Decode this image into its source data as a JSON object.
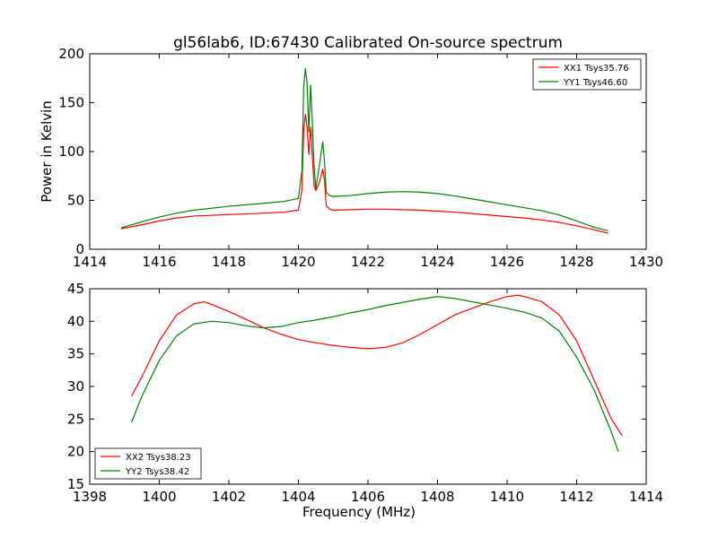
{
  "figure": {
    "title": "gl56lab6, ID:67430 Calibrated On-source spectrum"
  },
  "chart_data": [
    {
      "type": "line",
      "title": "gl56lab6, ID:67430 Calibrated On-source spectrum",
      "xlabel": "",
      "ylabel": "Power in Kelvin",
      "xlim": [
        1414,
        1430
      ],
      "ylim": [
        0,
        200
      ],
      "xticks": [
        1414,
        1416,
        1418,
        1420,
        1422,
        1424,
        1426,
        1428,
        1430
      ],
      "yticks": [
        0,
        50,
        100,
        150,
        200
      ],
      "grid": false,
      "legend": "top-right",
      "series": [
        {
          "name": "XX1 Tsys35.76",
          "color": "#ff0000",
          "x": [
            1414.9,
            1415.5,
            1416.0,
            1416.5,
            1417.0,
            1418.0,
            1419.0,
            1419.6,
            1420.0,
            1420.1,
            1420.15,
            1420.2,
            1420.25,
            1420.3,
            1420.35,
            1420.4,
            1420.45,
            1420.5,
            1420.6,
            1420.7,
            1420.75,
            1420.8,
            1420.9,
            1421.0,
            1421.5,
            1422.0,
            1422.5,
            1423.0,
            1423.5,
            1424.0,
            1424.5,
            1425.0,
            1425.5,
            1426.0,
            1426.5,
            1427.0,
            1427.5,
            1428.0,
            1428.5,
            1428.9
          ],
          "y": [
            21,
            25,
            29,
            32,
            34,
            35.5,
            37,
            38,
            40,
            60,
            120,
            138,
            125,
            97,
            125,
            95,
            65,
            60,
            68,
            82,
            70,
            45,
            41,
            40,
            40.5,
            41,
            41,
            40.5,
            40,
            39,
            38,
            36.5,
            35,
            33.5,
            32,
            30,
            27.5,
            24,
            20,
            16.5
          ]
        },
        {
          "name": "YY1 Tsys46.60",
          "color": "#008000",
          "x": [
            1414.9,
            1415.5,
            1416.0,
            1416.5,
            1417.0,
            1418.0,
            1419.0,
            1419.6,
            1420.0,
            1420.1,
            1420.15,
            1420.2,
            1420.25,
            1420.3,
            1420.35,
            1420.4,
            1420.45,
            1420.5,
            1420.6,
            1420.7,
            1420.75,
            1420.8,
            1420.9,
            1421.0,
            1421.5,
            1422.0,
            1422.5,
            1423.0,
            1423.5,
            1424.0,
            1424.5,
            1425.0,
            1425.5,
            1426.0,
            1426.5,
            1427.0,
            1427.5,
            1428.0,
            1428.5,
            1428.9
          ],
          "y": [
            22,
            28,
            33,
            37,
            40,
            44,
            47,
            49,
            52,
            80,
            165,
            185,
            170,
            120,
            168,
            130,
            85,
            62,
            85,
            110,
            90,
            58,
            55,
            54,
            55,
            57,
            58.5,
            59,
            58.5,
            57,
            54.5,
            51.5,
            48.5,
            45.5,
            42.5,
            39.5,
            35,
            29,
            22.5,
            19
          ]
        }
      ]
    },
    {
      "type": "line",
      "title": "",
      "xlabel": "Frequency (MHz)",
      "ylabel": "",
      "xlim": [
        1398,
        1414
      ],
      "ylim": [
        15,
        45
      ],
      "xticks": [
        1398,
        1400,
        1402,
        1404,
        1406,
        1408,
        1410,
        1412,
        1414
      ],
      "yticks": [
        15,
        20,
        25,
        30,
        35,
        40,
        45
      ],
      "grid": false,
      "legend": "bottom-left",
      "series": [
        {
          "name": "XX2 Tsys38.23",
          "color": "#ff0000",
          "x": [
            1399.2,
            1399.5,
            1400.0,
            1400.5,
            1401.0,
            1401.3,
            1401.5,
            1402.0,
            1402.5,
            1403.0,
            1403.5,
            1404.0,
            1404.5,
            1405.0,
            1405.5,
            1406.0,
            1406.5,
            1407.0,
            1407.5,
            1408.0,
            1408.5,
            1409.0,
            1409.5,
            1410.0,
            1410.3,
            1410.5,
            1411.0,
            1411.5,
            1412.0,
            1412.5,
            1413.0,
            1413.3
          ],
          "y": [
            28.5,
            31.5,
            37,
            41,
            42.7,
            43,
            42.6,
            41.5,
            40.3,
            39,
            38,
            37.2,
            36.7,
            36.3,
            36,
            35.8,
            36,
            36.7,
            38,
            39.5,
            41,
            42,
            43,
            43.8,
            44,
            43.8,
            43,
            41,
            37,
            31,
            25,
            22.5
          ]
        },
        {
          "name": "YY2 Tsys38.42",
          "color": "#008000",
          "x": [
            1399.2,
            1399.5,
            1400.0,
            1400.5,
            1401.0,
            1401.5,
            1402.0,
            1402.5,
            1403.0,
            1403.5,
            1404.0,
            1404.5,
            1405.0,
            1405.5,
            1406.0,
            1406.5,
            1407.0,
            1407.5,
            1408.0,
            1408.5,
            1409.0,
            1409.5,
            1410.0,
            1410.5,
            1411.0,
            1411.5,
            1412.0,
            1412.5,
            1413.0,
            1413.2
          ],
          "y": [
            24.5,
            28.5,
            34,
            37.8,
            39.6,
            40,
            39.8,
            39.3,
            39,
            39.2,
            39.8,
            40.2,
            40.7,
            41.3,
            41.8,
            42.4,
            42.9,
            43.4,
            43.8,
            43.5,
            43,
            42.5,
            42,
            41.4,
            40.5,
            38.5,
            34.5,
            29.5,
            23,
            20
          ]
        }
      ]
    }
  ]
}
